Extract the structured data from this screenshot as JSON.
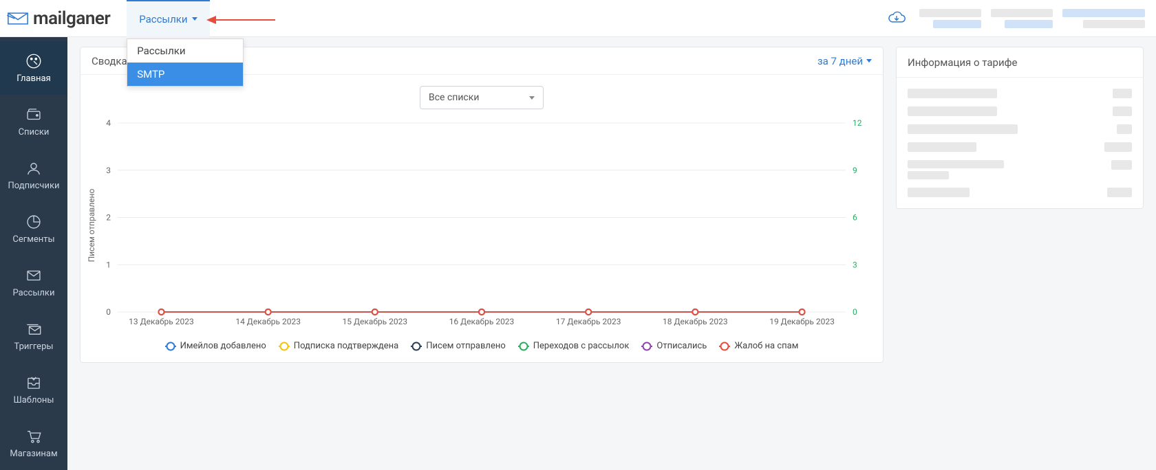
{
  "brand": "mailganer",
  "top_dropdown": {
    "label": "Рассылки",
    "items": [
      "Рассылки",
      "SMTP"
    ],
    "selected_index": 1
  },
  "sidebar": {
    "items": [
      {
        "id": "main",
        "label": "Главная",
        "icon": "dashboard"
      },
      {
        "id": "lists",
        "label": "Списки",
        "icon": "wallet"
      },
      {
        "id": "subscribers",
        "label": "Подписчики",
        "icon": "user"
      },
      {
        "id": "segments",
        "label": "Сегменты",
        "icon": "piechart"
      },
      {
        "id": "campaigns",
        "label": "Рассылки",
        "icon": "mail"
      },
      {
        "id": "triggers",
        "label": "Триггеры",
        "icon": "stackmail"
      },
      {
        "id": "templates",
        "label": "Шаблоны",
        "icon": "tray"
      },
      {
        "id": "shops",
        "label": "Магазинам",
        "icon": "cart"
      }
    ],
    "active_index": 0
  },
  "summary_panel": {
    "title_visible": "Сводка по а",
    "range_label": "за 7 дней",
    "list_selector": "Все списки"
  },
  "chart": {
    "type": "line",
    "y_axis_label": "Писем отправлено",
    "x_categories": [
      "13 Декабрь 2023",
      "14 Декабрь 2023",
      "15 Декабрь 2023",
      "16 Декабрь 2023",
      "17 Декабрь 2023",
      "18 Декабрь 2023",
      "19 Декабрь 2023"
    ],
    "left_axis": {
      "ticks": [
        0,
        1,
        2,
        3,
        4
      ],
      "ylim": [
        0,
        4
      ],
      "color": "#666666"
    },
    "right_axis": {
      "ticks": [
        0,
        3,
        6,
        9,
        12
      ],
      "ylim": [
        0,
        12
      ],
      "color": "#27ae60"
    },
    "grid_color": "#e9ecef",
    "background_color": "#ffffff",
    "series": [
      {
        "key": "added",
        "label": "Имейлов добавлено",
        "color": "#2f7bd4",
        "values": [
          0,
          0,
          0,
          0,
          0,
          0,
          0
        ]
      },
      {
        "key": "confirmed",
        "label": "Подписка подтверждена",
        "color": "#f1c40f",
        "values": [
          0,
          0,
          0,
          0,
          0,
          0,
          0
        ]
      },
      {
        "key": "sent",
        "label": "Писем отправлено",
        "color": "#2c3e50",
        "values": [
          0,
          0,
          0,
          0,
          0,
          0,
          0
        ]
      },
      {
        "key": "clicks",
        "label": "Переходов с рассылок",
        "color": "#27ae60",
        "values": [
          0,
          0,
          0,
          0,
          0,
          0,
          0
        ]
      },
      {
        "key": "unsub",
        "label": "Отписались",
        "color": "#8e44ad",
        "values": [
          0,
          0,
          0,
          0,
          0,
          0,
          0
        ]
      },
      {
        "key": "spam",
        "label": "Жалоб на спам",
        "color": "#e74c3c",
        "values": [
          0,
          0,
          0,
          0,
          0,
          0,
          0
        ]
      }
    ],
    "marker_radius": 4,
    "line_width": 1.6,
    "tick_fontsize": 12
  },
  "tariff_panel": {
    "title": "Информация о тарифе"
  }
}
